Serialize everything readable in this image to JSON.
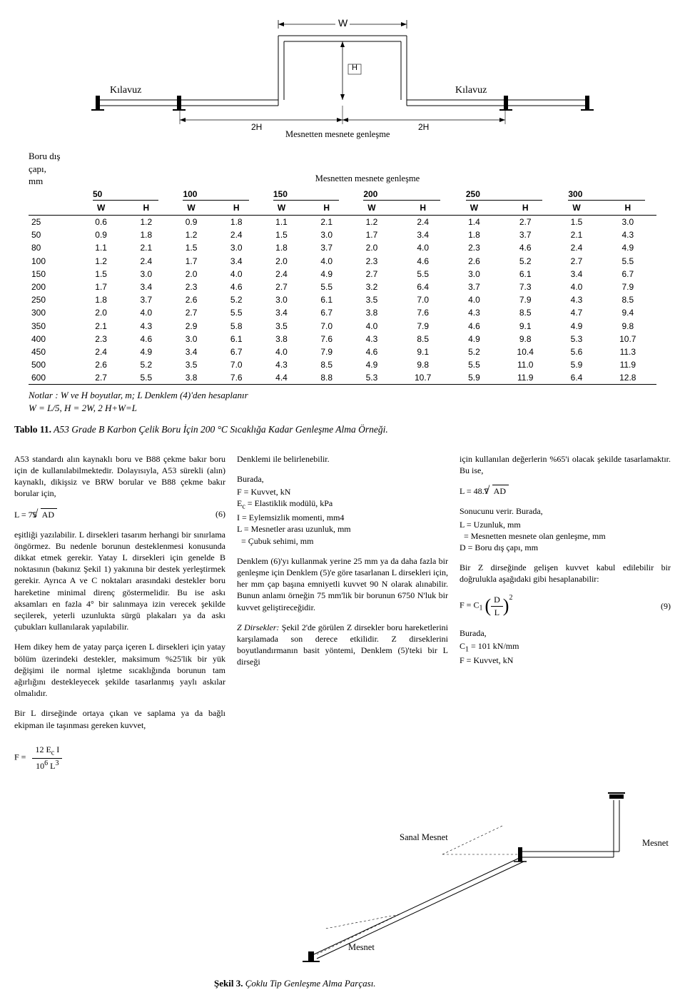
{
  "diagram": {
    "kilavuz_left": "Kılavuz",
    "kilavuz_right": "Kılavuz",
    "mesnet_caption": "Mesnetten mesnete genleşme",
    "mesnet_caption2": "Mesnetten mesnete genleşme",
    "label_W": "W",
    "label_H": "H",
    "label_2H_l": "2H",
    "label_2H_r": "2H"
  },
  "axis_label": {
    "line1": "Boru dış",
    "line2": "çapı,",
    "line3": "mm"
  },
  "table": {
    "groups": [
      "50",
      "100",
      "150",
      "200",
      "250",
      "300"
    ],
    "sub": [
      "W",
      "H"
    ],
    "rows": [
      {
        "d": "25",
        "v": [
          "0.6",
          "1.2",
          "0.9",
          "1.8",
          "1.1",
          "2.1",
          "1.2",
          "2.4",
          "1.4",
          "2.7",
          "1.5",
          "3.0"
        ]
      },
      {
        "d": "50",
        "v": [
          "0.9",
          "1.8",
          "1.2",
          "2.4",
          "1.5",
          "3.0",
          "1.7",
          "3.4",
          "1.8",
          "3.7",
          "2.1",
          "4.3"
        ]
      },
      {
        "d": "80",
        "v": [
          "1.1",
          "2.1",
          "1.5",
          "3.0",
          "1.8",
          "3.7",
          "2.0",
          "4.0",
          "2.3",
          "4.6",
          "2.4",
          "4.9"
        ]
      },
      {
        "d": "100",
        "v": [
          "1.2",
          "2.4",
          "1.7",
          "3.4",
          "2.0",
          "4.0",
          "2.3",
          "4.6",
          "2.6",
          "5.2",
          "2.7",
          "5.5"
        ]
      },
      {
        "d": "150",
        "v": [
          "1.5",
          "3.0",
          "2.0",
          "4.0",
          "2.4",
          "4.9",
          "2.7",
          "5.5",
          "3.0",
          "6.1",
          "3.4",
          "6.7"
        ]
      },
      {
        "d": "200",
        "v": [
          "1.7",
          "3.4",
          "2.3",
          "4.6",
          "2.7",
          "5.5",
          "3.2",
          "6.4",
          "3.7",
          "7.3",
          "4.0",
          "7.9"
        ]
      },
      {
        "d": "250",
        "v": [
          "1.8",
          "3.7",
          "2.6",
          "5.2",
          "3.0",
          "6.1",
          "3.5",
          "7.0",
          "4.0",
          "7.9",
          "4.3",
          "8.5"
        ]
      },
      {
        "d": "300",
        "v": [
          "2.0",
          "4.0",
          "2.7",
          "5.5",
          "3.4",
          "6.7",
          "3.8",
          "7.6",
          "4.3",
          "8.5",
          "4.7",
          "9.4"
        ]
      },
      {
        "d": "350",
        "v": [
          "2.1",
          "4.3",
          "2.9",
          "5.8",
          "3.5",
          "7.0",
          "4.0",
          "7.9",
          "4.6",
          "9.1",
          "4.9",
          "9.8"
        ]
      },
      {
        "d": "400",
        "v": [
          "2.3",
          "4.6",
          "3.0",
          "6.1",
          "3.8",
          "7.6",
          "4.3",
          "8.5",
          "4.9",
          "9.8",
          "5.3",
          "10.7"
        ]
      },
      {
        "d": "450",
        "v": [
          "2.4",
          "4.9",
          "3.4",
          "6.7",
          "4.0",
          "7.9",
          "4.6",
          "9.1",
          "5.2",
          "10.4",
          "5.6",
          "11.3"
        ]
      },
      {
        "d": "500",
        "v": [
          "2.6",
          "5.2",
          "3.5",
          "7.0",
          "4.3",
          "8.5",
          "4.9",
          "9.8",
          "5.5",
          "11.0",
          "5.9",
          "11.9"
        ]
      },
      {
        "d": "600",
        "v": [
          "2.7",
          "5.5",
          "3.8",
          "7.6",
          "4.4",
          "8.8",
          "5.3",
          "10.7",
          "5.9",
          "11.9",
          "6.4",
          "12.8"
        ]
      }
    ]
  },
  "notes": {
    "line1": "Notlar : W ve H boyutlar, m; L Denklem (4)'den hesaplanır",
    "line2": "W = L/5, H = 2W, 2 H+W=L"
  },
  "caption": {
    "bold": "Tablo 11.",
    "rest": " A53 Grade B Karbon Çelik Boru İçin 200 °C Sıcaklığa Kadar Genleşme Alma Örneği."
  },
  "col1": {
    "p1": "A53 standardı alın kaynaklı boru ve B88 çekme bakır boru için de kullanılabilmektedir. Dolayısıyla, A53 sürekli (alın) kaynaklı, dikişsiz ve BRW borular ve B88 çekme bakır borular için,",
    "eq6_lhs": "L = 75",
    "eq6_rad": "AD",
    "eq6_num": "(6)",
    "p2": "eşitliği yazılabilir. L dirsekleri tasarım herhangi bir sınırlama öngörmez. Bu nedenle borunun desteklenmesi konusunda dikkat etmek gerekir. Yatay L dirsekleri için genelde B noktasının (bakınız Şekil 1) yakınına bir destek yerleştirmek gerekir. Ayrıca A ve C noktaları arasındaki destekler boru hareketine minimal direnç göstermelidir. Bu ise askı aksamları en fazla 4° bir salınmaya izin verecek şekilde seçilerek, yeterli uzunlukta sürgü plakaları ya da askı çubukları kullanılarak yapılabilir.",
    "p3": "Hem dikey hem de yatay parça içeren L dirsekleri için yatay bölüm üzerindeki destekler, maksimum %25'lik bir yük değişimi ile normal işletme sıcaklığında borunun tam ağırlığını destekleyecek şekilde tasarlanmış yaylı askılar olmalıdır.",
    "p4": "Bir L dirseğinde ortaya çıkan ve saplama ya da bağlı ekipman ile taşınması gereken kuvvet,",
    "eqF_lhs": "F =",
    "eqF_num": "12 E",
    "eqF_numsub": "c",
    "eqF_num2": " I",
    "eqF_den": "10",
    "eqF_densup": "6",
    "eqF_den2": " L",
    "eqF_den2sup": "3"
  },
  "col2": {
    "p1": "Denklemi ile belirlenebilir.",
    "p2": "Burada,",
    "l1": "F = Kuvvet, kN",
    "l2a": "E",
    "l2sub": "c",
    "l2b": " = Elastiklik modülü, kPa",
    "l3": "I = Eylemsizlik momenti, mm4",
    "l4": "L = Mesnetler arası uzunluk, mm",
    "l5": "  = Çubuk sehimi, mm",
    "p3": "Denklem (6)'yı kullanmak yerine 25 mm ya da daha fazla bir genleşme için Denklem (5)'e göre tasarlanan L dirsekleri için, her mm çap başına emniyetli kuvvet  90 N olarak alınabilir. Bunun anlamı örneğin 75 mm'lik bir borunun 6750 N'luk bir kuvvet geliş­tireceğidir.",
    "p4a": "Z Dirsekler:",
    "p4b": " Şekil 2'de görülen Z dirsekler boru hareketlerini karşılamada son derece etkilidir. Z dirseklerini boyutlandırmanın basit yöntemi, Denklem (5)'teki bir L dirseği"
  },
  "col3": {
    "p1": "için kullanılan değerlerin %65'i olacak şekilde tasarlamaktır. Bu ise,",
    "eq_lhs": "L = 48.7",
    "eq_rad": "AD",
    "p2": "Sonucunu verir. Burada,",
    "l1": "L = Uzunluk, mm",
    "l2": "  = Mesnetten mesnete olan genleşme, mm",
    "l3": "D = Boru dış çapı, mm",
    "p3": "Bir Z dirseğinde gelişen kuvvet kabul edilebilir bir doğrulukla aşağıdaki gibi hesaplanabilir:",
    "eq9_lhs": "F =  C",
    "eq9_sub": "1",
    "eq9_frac_num": "D",
    "eq9_frac_den": "L",
    "eq9_sup": "2",
    "eq9_num": "(9)",
    "p4": "Burada,",
    "l4a": "C",
    "l4sub": "1",
    "l4b": " = 101 kN/mm",
    "l5": "F = Kuvvet, kN"
  },
  "fig3": {
    "sanal": "Sanal Mesnet",
    "mesnet_r": "Mesnet",
    "mesnet_b": "Mesnet",
    "caption_bold": "Şekil 3.",
    "caption_rest": " Çoklu Tip Genleşme Alma Parçası."
  }
}
